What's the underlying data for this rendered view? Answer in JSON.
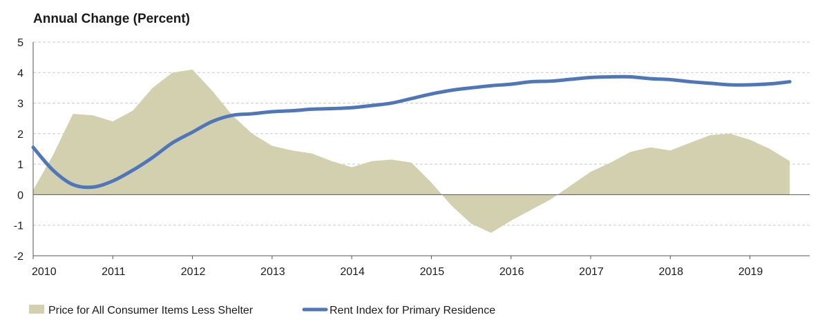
{
  "chart_data": {
    "type": "area+line",
    "title": "Annual Change (Percent)",
    "ylim": [
      -2,
      5
    ],
    "yticks": [
      "5",
      "4",
      "3",
      "2",
      "1",
      "0",
      "-1",
      "-2"
    ],
    "xlim": [
      2010.0,
      2019.75
    ],
    "xticks": [
      "2010",
      "2011",
      "2012",
      "2013",
      "2014",
      "2015",
      "2016",
      "2017",
      "2018",
      "2019"
    ],
    "grid": "horizontal dashed",
    "legend_position": "bottom",
    "series": [
      {
        "name": "Price for All Consumer Items Less Shelter",
        "kind": "area",
        "color": "#d3d0b0",
        "x": [
          2010.0,
          2010.25,
          2010.5,
          2010.75,
          2011.0,
          2011.25,
          2011.5,
          2011.75,
          2012.0,
          2012.25,
          2012.5,
          2012.75,
          2013.0,
          2013.25,
          2013.5,
          2013.75,
          2014.0,
          2014.25,
          2014.5,
          2014.75,
          2015.0,
          2015.25,
          2015.5,
          2015.75,
          2016.0,
          2016.25,
          2016.5,
          2016.75,
          2017.0,
          2017.25,
          2017.5,
          2017.75,
          2018.0,
          2018.25,
          2018.5,
          2018.75,
          2019.0,
          2019.25,
          2019.5
        ],
        "y": [
          0.15,
          1.3,
          2.65,
          2.6,
          2.4,
          2.75,
          3.5,
          4.0,
          4.1,
          3.4,
          2.6,
          2.0,
          1.6,
          1.45,
          1.35,
          1.1,
          0.9,
          1.1,
          1.15,
          1.05,
          0.4,
          -0.35,
          -0.95,
          -1.25,
          -0.85,
          -0.5,
          -0.15,
          0.3,
          0.75,
          1.05,
          1.4,
          1.55,
          1.45,
          1.7,
          1.95,
          2.0,
          1.8,
          1.5,
          1.1
        ]
      },
      {
        "name": "Rent Index for Primary Residence",
        "kind": "line",
        "color": "#4f76b8",
        "x": [
          2010.0,
          2010.25,
          2010.5,
          2010.75,
          2011.0,
          2011.25,
          2011.5,
          2011.75,
          2012.0,
          2012.25,
          2012.5,
          2012.75,
          2013.0,
          2013.25,
          2013.5,
          2013.75,
          2014.0,
          2014.25,
          2014.5,
          2014.75,
          2015.0,
          2015.25,
          2015.5,
          2015.75,
          2016.0,
          2016.25,
          2016.5,
          2016.75,
          2017.0,
          2017.25,
          2017.5,
          2017.75,
          2018.0,
          2018.25,
          2018.5,
          2018.75,
          2019.0,
          2019.25,
          2019.5
        ],
        "y": [
          1.55,
          0.8,
          0.33,
          0.25,
          0.45,
          0.8,
          1.22,
          1.7,
          2.05,
          2.4,
          2.6,
          2.65,
          2.72,
          2.75,
          2.8,
          2.82,
          2.85,
          2.92,
          3.0,
          3.15,
          3.3,
          3.42,
          3.5,
          3.57,
          3.62,
          3.7,
          3.72,
          3.78,
          3.84,
          3.86,
          3.86,
          3.8,
          3.77,
          3.7,
          3.65,
          3.6,
          3.6,
          3.63,
          3.7
        ]
      }
    ]
  }
}
